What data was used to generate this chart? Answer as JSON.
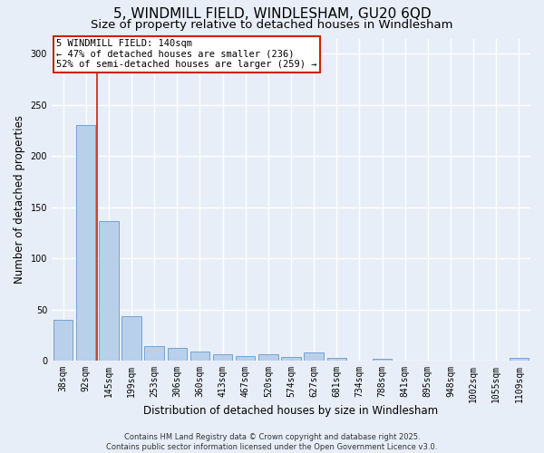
{
  "title_line1": "5, WINDMILL FIELD, WINDLESHAM, GU20 6QD",
  "title_line2": "Size of property relative to detached houses in Windlesham",
  "xlabel": "Distribution of detached houses by size in Windlesham",
  "ylabel": "Number of detached properties",
  "categories": [
    "38sqm",
    "92sqm",
    "145sqm",
    "199sqm",
    "253sqm",
    "306sqm",
    "360sqm",
    "413sqm",
    "467sqm",
    "520sqm",
    "574sqm",
    "627sqm",
    "681sqm",
    "734sqm",
    "788sqm",
    "841sqm",
    "895sqm",
    "948sqm",
    "1002sqm",
    "1055sqm",
    "1109sqm"
  ],
  "values": [
    40,
    230,
    137,
    44,
    14,
    13,
    9,
    6,
    5,
    6,
    4,
    8,
    3,
    0,
    2,
    0,
    0,
    0,
    0,
    0,
    3
  ],
  "bar_color": "#b8d0ea",
  "bar_edge_color": "#6699cc",
  "bg_color": "#e8eef8",
  "grid_color": "#ffffff",
  "vline_x": 1.5,
  "vline_color": "#cc2200",
  "annotation_text": "5 WINDMILL FIELD: 140sqm\n← 47% of detached houses are smaller (236)\n52% of semi-detached houses are larger (259) →",
  "annotation_box_color": "#ffffff",
  "annotation_box_edge": "#cc2200",
  "ylim": [
    0,
    315
  ],
  "yticks": [
    0,
    50,
    100,
    150,
    200,
    250,
    300
  ],
  "footer_text": "Contains HM Land Registry data © Crown copyright and database right 2025.\nContains public sector information licensed under the Open Government Licence v3.0.",
  "title_fontsize": 11,
  "subtitle_fontsize": 9.5,
  "tick_fontsize": 7,
  "ylabel_fontsize": 8.5,
  "xlabel_fontsize": 8.5,
  "annotation_fontsize": 7.5
}
